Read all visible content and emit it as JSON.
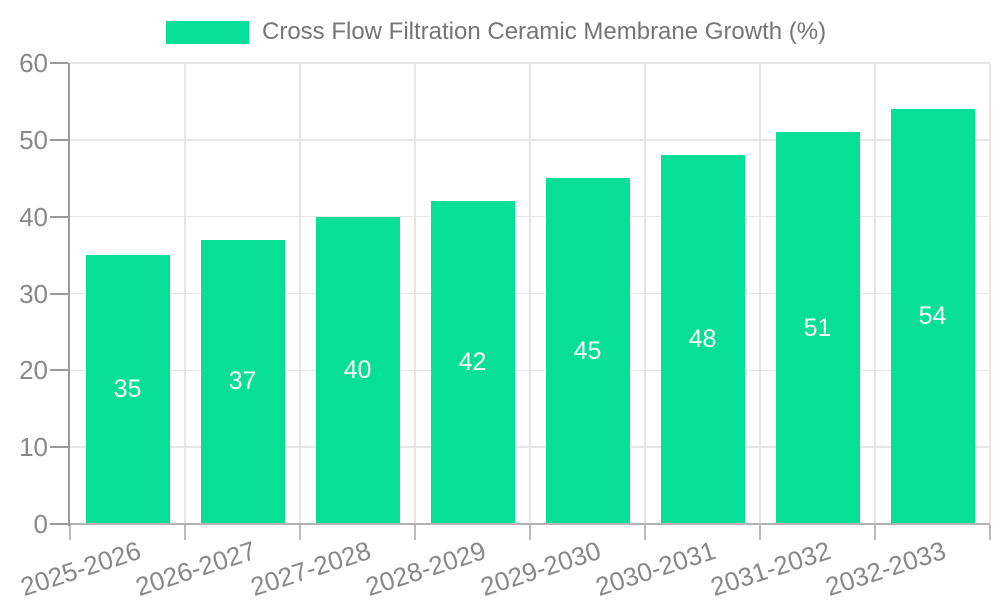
{
  "legend": {
    "label": "Cross Flow Filtration Ceramic Membrane Growth (%)"
  },
  "chart_data": {
    "type": "bar",
    "title": "",
    "xlabel": "",
    "ylabel": "",
    "categories": [
      "2025-2026",
      "2026-2027",
      "2027-2028",
      "2028-2029",
      "2029-2030",
      "2030-2031",
      "2031-2032",
      "2032-2033"
    ],
    "values": [
      35,
      37,
      40,
      42,
      45,
      48,
      51,
      54
    ],
    "series": [
      {
        "name": "Cross Flow Filtration Ceramic Membrane Growth (%)",
        "values": [
          35,
          37,
          40,
          42,
          45,
          48,
          51,
          54
        ]
      }
    ],
    "ylim": [
      0,
      60
    ],
    "yticks": [
      0,
      10,
      20,
      30,
      40,
      50,
      60
    ],
    "grid": true,
    "legend_position": "top-center",
    "value_labels": "inside-center",
    "x_label_rotation_deg": -18,
    "colors": {
      "bar": "#07DE96",
      "value_label": "#ffffff",
      "axis_text": "#888888",
      "legend_text": "#757575",
      "grid_line": "#e6e6e6",
      "y_axis_line": "#9a9a9a",
      "x_axis_line": "#b3b3b3",
      "y_tick": "#9a9a9a",
      "x_tick": "#bbbbbb",
      "background": "#ffffff"
    }
  }
}
